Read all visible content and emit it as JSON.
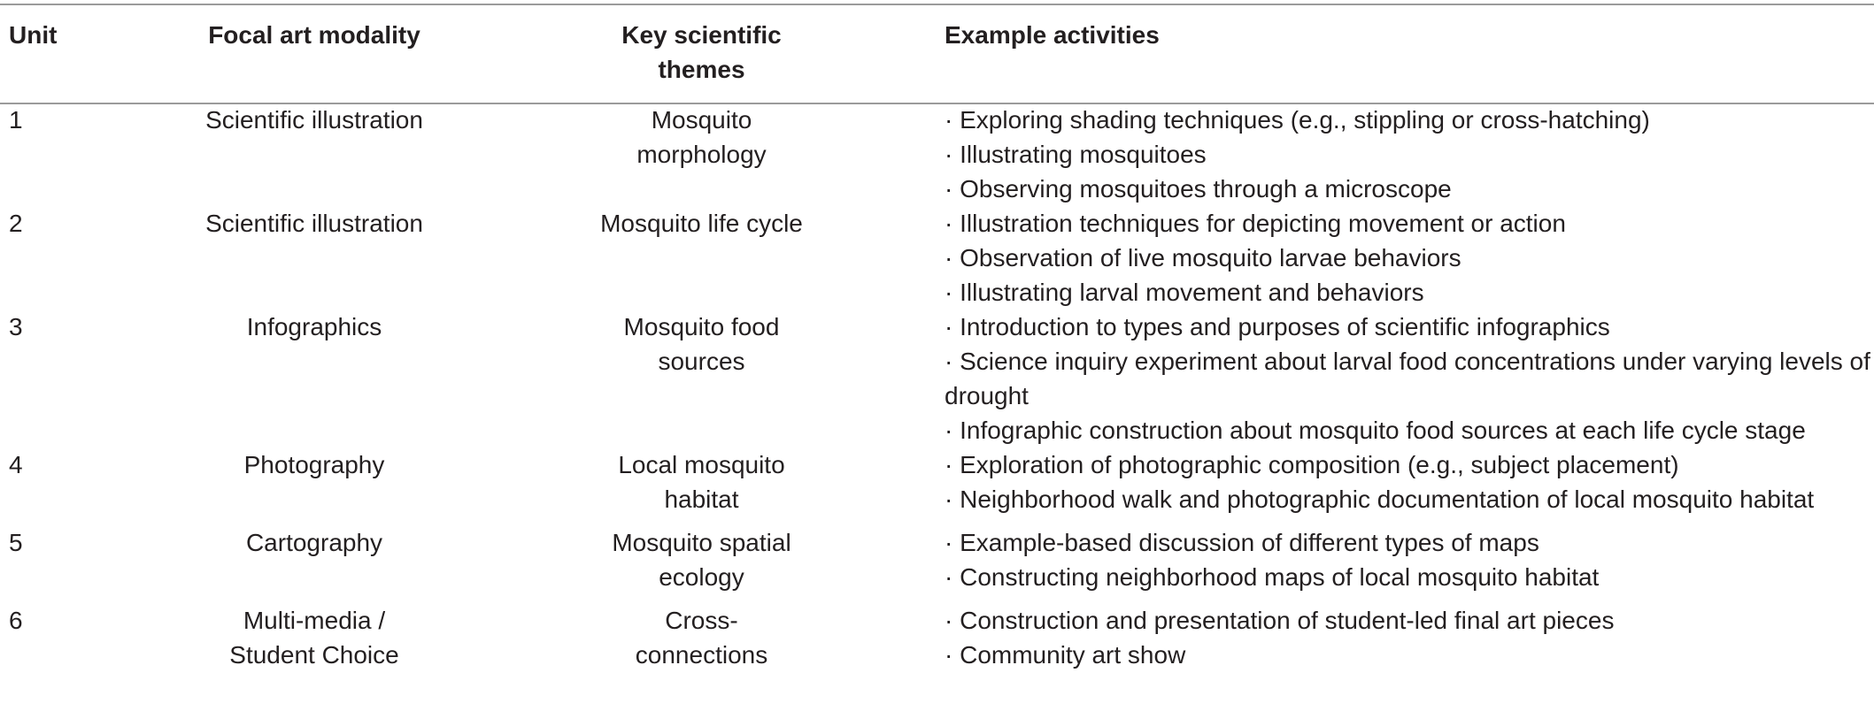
{
  "headers": {
    "unit": "Unit",
    "modality": "Focal art modality",
    "themes": "Key scientific themes",
    "activities": "Example activities"
  },
  "rows": [
    {
      "unit": "1",
      "modality": "Scientific illustration",
      "themes": "Mosquito morphology",
      "activities": [
        "· Exploring shading techniques (e.g., stippling or cross-hatching)",
        "· Illustrating mosquitoes",
        "· Observing mosquitoes through a microscope"
      ]
    },
    {
      "unit": "2",
      "modality": "Scientific illustration",
      "themes": "Mosquito life cycle",
      "activities": [
        "· Illustration techniques for depicting movement or action",
        "· Observation of live mosquito larvae behaviors",
        "· Illustrating larval movement and behaviors"
      ]
    },
    {
      "unit": "3",
      "modality": "Infographics",
      "themes": "Mosquito food sources",
      "activities": [
        "· Introduction to types and purposes of scientific infographics",
        "· Science inquiry experiment about larval food concentrations under varying levels of drought",
        "· Infographic construction about mosquito food sources at each life cycle stage"
      ]
    },
    {
      "unit": "4",
      "modality": "Photography",
      "themes": "Local mosquito habitat",
      "activities": [
        "· Exploration of photographic composition (e.g., subject placement)",
        "· Neighborhood walk and photographic documentation of local mosquito habitat"
      ]
    },
    {
      "unit": "5",
      "modality": "Cartography",
      "themes": "Mosquito spatial ecology",
      "activities": [
        "· Example-based discussion of different types of maps",
        "· Constructing neighborhood maps of local mosquito habitat"
      ]
    },
    {
      "unit": "6",
      "modality": "Multi-media / Student Choice",
      "themes": "Cross-connections",
      "activities": [
        "· Construction and presentation of student-led final art pieces",
        "· Community art show"
      ]
    }
  ]
}
